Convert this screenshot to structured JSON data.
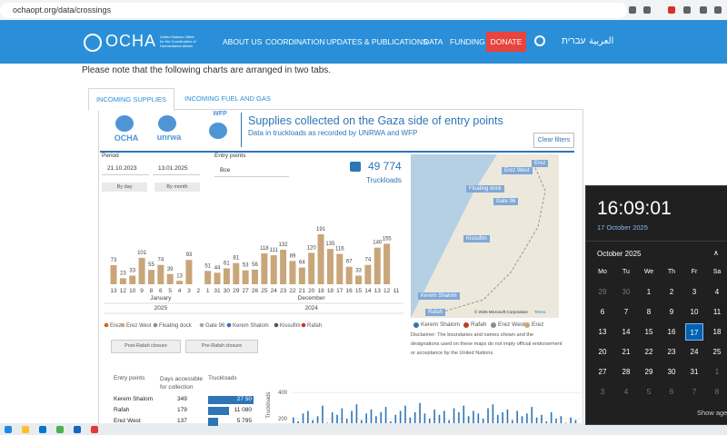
{
  "browser": {
    "url": "ochaopt.org/data/crossings"
  },
  "header": {
    "logo": "OCHA",
    "org": "United Nations Office for the Coordination of Humanitarian Affairs",
    "nav": [
      "ABOUT US",
      "COORDINATION",
      "UPDATES & PUBLICATIONS",
      "DATA",
      "FUNDING"
    ],
    "donate": "DONATE",
    "languages": [
      "עברית",
      "العربية"
    ]
  },
  "note": "Please note that the following charts are arranged in two tabs.",
  "tabs": [
    "INCOMING SUPPLIES",
    "INCOMING FUEL AND GAS"
  ],
  "dashboard": {
    "logos": [
      "OCHA",
      "unrwa",
      "WFP"
    ],
    "title": "Supplies collected on the Gaza side of entry points",
    "subtitle": "Data in truckloads as recorded by UNRWA and WFP",
    "clear": "Clear filters",
    "period_label": "Period",
    "dates": [
      "21.10.2023",
      "13.01.2025"
    ],
    "entry_label": "Entry points",
    "entry_value": "Все",
    "buttons": [
      "By day",
      "By month"
    ],
    "total": "49 774",
    "total_label": "Truckloads",
    "closure_buttons": [
      "Post-Rafah closure",
      "Pre-Rafah closure"
    ],
    "map": {
      "labels": [
        "Erez",
        "Erez West",
        "Floating dock",
        "Gate 96",
        "Kissufim",
        "Kerem Shalom",
        "Rafah"
      ],
      "copyright": "© 2025 Microsoft Corporation",
      "terms": "Terms",
      "legend": [
        {
          "name": "Kerem Shalom",
          "color": "#2e75b6"
        },
        {
          "name": "Rafah",
          "color": "#c0392b"
        },
        {
          "name": "Erez West",
          "color": "#8c8c8c"
        },
        {
          "name": "Erez",
          "color": "#d1a46f"
        }
      ],
      "disclaimer": "Disclaimer: The boundaries and names shown and the designations used on these maps do not imply official endorsement or acceptance by the United Nations."
    },
    "table": {
      "headers": [
        "Entry points",
        "Days accessible for collection",
        "Truckloads"
      ],
      "rows": [
        [
          "Kerem Shalom",
          349,
          "27 50"
        ],
        [
          "Rafah",
          179,
          "11 080"
        ],
        [
          "Erez West",
          137,
          "5 795"
        ]
      ]
    }
  },
  "chart_data": [
    {
      "type": "bar",
      "categories": [
        "13",
        "12",
        "10",
        "9",
        "8",
        "6",
        "5",
        "4",
        "3",
        "2",
        "1",
        "31",
        "30",
        "29",
        "27",
        "26",
        "25",
        "24",
        "23",
        "22",
        "21",
        "20",
        "19",
        "18",
        "17",
        "16",
        "15",
        "14",
        "13",
        "12",
        "11"
      ],
      "values": [
        73,
        23,
        33,
        101,
        55,
        74,
        39,
        13,
        93,
        null,
        51,
        44,
        61,
        81,
        53,
        56,
        118,
        111,
        132,
        89,
        64,
        120,
        191,
        135,
        116,
        67,
        33,
        74,
        140,
        155,
        null
      ],
      "color": "#c9a57a",
      "month_labels": [
        "January",
        "December"
      ],
      "year_labels": [
        "2025",
        "2024"
      ],
      "legend": [
        {
          "name": "Erez",
          "color": "#e0592b"
        },
        {
          "name": "Erez West",
          "color": "#d1a46f"
        },
        {
          "name": "Floating dock",
          "color": "#8c8c8c"
        },
        {
          "name": "Gate 96",
          "color": "#a6a6a6"
        },
        {
          "name": "Kerem Shalom",
          "color": "#2e75b6"
        },
        {
          "name": "Kissufim",
          "color": "#555555"
        },
        {
          "name": "Rafah",
          "color": "#c0392b"
        }
      ]
    },
    {
      "type": "bar",
      "y_label": "Truckloads",
      "ylim": [
        0,
        450
      ],
      "yticks": [
        200,
        400
      ],
      "color": "#2e75b6",
      "values": [
        210,
        180,
        240,
        260,
        190,
        220,
        300,
        170,
        250,
        230,
        280,
        200,
        260,
        310,
        190,
        240,
        270,
        220,
        250,
        290,
        180,
        230,
        260,
        300,
        210,
        250,
        320,
        240,
        200,
        270,
        230,
        260,
        190,
        280,
        250,
        300,
        220,
        260,
        240,
        200,
        280,
        310,
        230,
        250,
        270,
        190,
        260,
        220,
        240,
        290,
        210,
        230,
        180,
        250,
        200,
        220,
        170,
        210,
        190,
        160
      ]
    }
  ],
  "clock": {
    "time": "16:09:01",
    "date": "17 October 2025",
    "month": "October 2025",
    "weekdays": [
      "Mo",
      "Tu",
      "We",
      "Th",
      "Fr",
      "Sa"
    ],
    "weeks": [
      [
        29,
        30,
        1,
        2,
        3,
        4
      ],
      [
        6,
        7,
        8,
        9,
        10,
        11
      ],
      [
        13,
        14,
        15,
        16,
        17,
        18
      ],
      [
        20,
        21,
        22,
        23,
        24,
        25
      ],
      [
        27,
        28,
        29,
        30,
        31,
        1
      ],
      [
        3,
        4,
        5,
        6,
        7,
        8
      ]
    ],
    "agenda": "Show agen"
  }
}
